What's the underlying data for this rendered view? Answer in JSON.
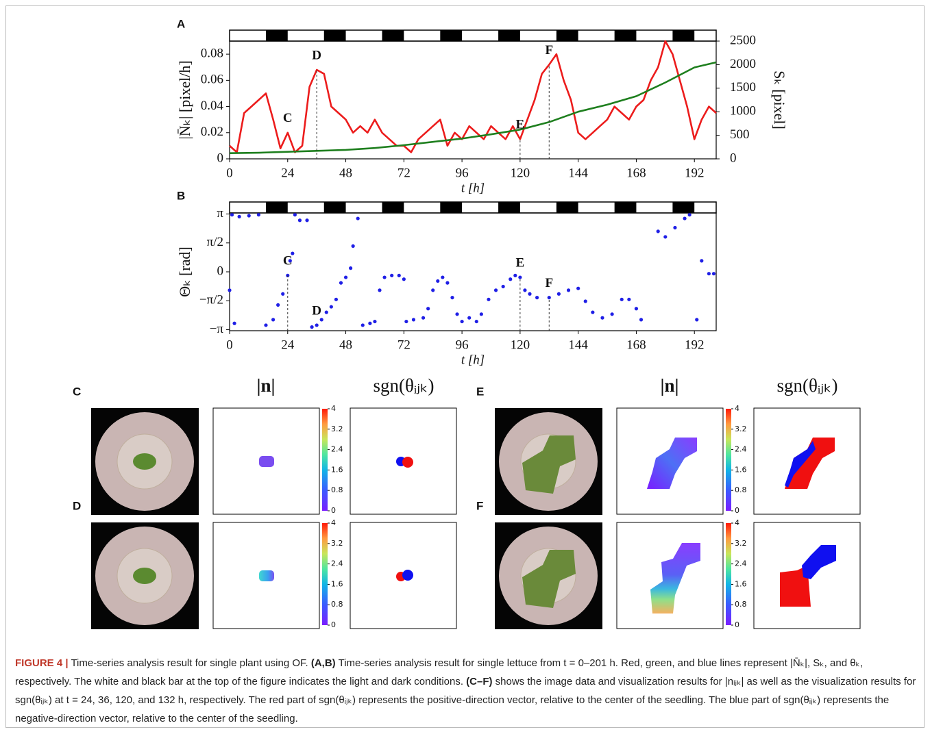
{
  "chart_data": [
    {
      "type": "line",
      "panel_label": "A",
      "xlabel": "t [h]",
      "ylabel": "|N̄ₖ| [pixel/h]",
      "y2label": "Sₖ [pixel]",
      "xlim": [
        0,
        201
      ],
      "xticks": [
        0,
        24,
        48,
        72,
        96,
        120,
        144,
        168,
        192
      ],
      "ylim": [
        0,
        0.09
      ],
      "yticks": [
        0,
        0.02,
        0.04,
        0.06,
        0.08
      ],
      "y2lim": [
        0,
        2500
      ],
      "y2ticks": [
        0,
        500,
        1000,
        1500,
        2000,
        2500
      ],
      "dark_periods": [
        [
          15,
          24
        ],
        [
          39,
          48
        ],
        [
          63,
          72
        ],
        [
          87,
          96
        ],
        [
          111,
          120
        ],
        [
          135,
          144
        ],
        [
          159,
          168
        ],
        [
          183,
          192
        ]
      ],
      "series": [
        {
          "color": "#ec1c1c",
          "x": [
            0,
            3,
            6,
            9,
            12,
            15,
            18,
            21,
            24,
            27,
            30,
            33,
            36,
            39,
            42,
            45,
            48,
            51,
            54,
            57,
            60,
            63,
            66,
            69,
            72,
            75,
            78,
            81,
            84,
            87,
            90,
            93,
            96,
            99,
            102,
            105,
            108,
            111,
            114,
            117,
            120,
            123,
            126,
            129,
            132,
            135,
            138,
            141,
            144,
            147,
            150,
            153,
            156,
            159,
            162,
            165,
            168,
            171,
            174,
            177,
            180,
            183,
            186,
            189,
            192,
            195,
            198,
            201
          ],
          "values": [
            0.01,
            0.005,
            0.035,
            0.04,
            0.045,
            0.05,
            0.03,
            0.008,
            0.02,
            0.005,
            0.01,
            0.055,
            0.068,
            0.065,
            0.04,
            0.035,
            0.03,
            0.02,
            0.025,
            0.02,
            0.03,
            0.02,
            0.015,
            0.01,
            0.01,
            0.005,
            0.015,
            0.02,
            0.025,
            0.03,
            0.01,
            0.02,
            0.015,
            0.025,
            0.02,
            0.015,
            0.025,
            0.02,
            0.015,
            0.025,
            0.015,
            0.03,
            0.045,
            0.065,
            0.072,
            0.08,
            0.06,
            0.045,
            0.02,
            0.015,
            0.02,
            0.025,
            0.03,
            0.04,
            0.035,
            0.03,
            0.04,
            0.045,
            0.06,
            0.07,
            0.09,
            0.08,
            0.06,
            0.04,
            0.015,
            0.03,
            0.04,
            0.035
          ]
        },
        {
          "color": "#1e7f1e",
          "axis": "y2",
          "x": [
            0,
            12,
            24,
            36,
            48,
            60,
            72,
            84,
            96,
            108,
            120,
            132,
            144,
            156,
            168,
            180,
            192,
            201
          ],
          "values": [
            120,
            130,
            150,
            170,
            190,
            230,
            290,
            360,
            430,
            520,
            620,
            780,
            1000,
            1150,
            1330,
            1620,
            1940,
            2050
          ]
        }
      ],
      "markers": [
        {
          "label": "C",
          "x": 24,
          "dashed": false
        },
        {
          "label": "D",
          "x": 36,
          "dashed": true
        },
        {
          "label": "E",
          "x": 120,
          "dashed": true
        },
        {
          "label": "F",
          "x": 132,
          "dashed": true
        }
      ]
    },
    {
      "type": "scatter",
      "panel_label": "B",
      "xlabel": "t [h]",
      "ylabel": "Θₖ [rad]",
      "xlim": [
        0,
        201
      ],
      "xticks": [
        0,
        24,
        48,
        72,
        96,
        120,
        144,
        168,
        192
      ],
      "ylim": [
        -3.2,
        3.2
      ],
      "yticks": [
        {
          "value": 3.1416,
          "label": "π"
        },
        {
          "value": 1.5708,
          "label": "π/2"
        },
        0,
        {
          "value": -1.5708,
          "label": "−π/2"
        },
        {
          "value": -3.1416,
          "label": "−π"
        }
      ],
      "dark_periods": [
        [
          15,
          24
        ],
        [
          39,
          48
        ],
        [
          63,
          72
        ],
        [
          87,
          96
        ],
        [
          111,
          120
        ],
        [
          135,
          144
        ],
        [
          159,
          168
        ],
        [
          183,
          192
        ]
      ],
      "series": [
        {
          "color": "#1f1fe6",
          "x": [
            0,
            1,
            2,
            4,
            8,
            12,
            15,
            18,
            20,
            22,
            24,
            25,
            26,
            27,
            29,
            32,
            34,
            36,
            38,
            40,
            42,
            44,
            46,
            48,
            50,
            51,
            53,
            55,
            58,
            60,
            62,
            64,
            67,
            70,
            72,
            73,
            76,
            80,
            82,
            84,
            86,
            88,
            90,
            92,
            94,
            96,
            99,
            102,
            104,
            107,
            110,
            113,
            116,
            118,
            120,
            122,
            124,
            127,
            132,
            136,
            140,
            144,
            147,
            150,
            154,
            158,
            162,
            165,
            168,
            170,
            177,
            180,
            184,
            188,
            190,
            193,
            195,
            198,
            200
          ],
          "values": [
            -1.0,
            3.1,
            -2.8,
            3.0,
            3.05,
            3.1,
            -2.9,
            -2.6,
            -1.8,
            -1.2,
            -0.2,
            0.6,
            1.0,
            3.1,
            2.8,
            2.8,
            -3.0,
            -2.9,
            -2.6,
            -2.2,
            -1.9,
            -1.5,
            -0.6,
            -0.3,
            0.2,
            1.4,
            2.9,
            -2.9,
            -2.8,
            -2.7,
            -1.0,
            -0.3,
            -0.2,
            -0.2,
            -0.4,
            -2.7,
            -2.6,
            -2.5,
            -2.0,
            -1.0,
            -0.5,
            -0.3,
            -0.6,
            -1.4,
            -2.3,
            -2.7,
            -2.5,
            -2.7,
            -2.3,
            -1.5,
            -1.0,
            -0.8,
            -0.4,
            -0.2,
            -0.3,
            -1.0,
            -1.2,
            -1.4,
            -1.4,
            -1.2,
            -1.0,
            -0.9,
            -1.6,
            -2.2,
            -2.5,
            -2.3,
            -1.5,
            -1.5,
            -2.0,
            -2.6,
            2.2,
            1.9,
            2.4,
            2.9,
            3.1,
            -2.6,
            0.6,
            -0.1,
            -0.1
          ]
        }
      ],
      "markers": [
        {
          "label": "C",
          "x": 24,
          "dashed": true
        },
        {
          "label": "D",
          "x": 36,
          "dashed": false
        },
        {
          "label": "E",
          "x": 120,
          "dashed": true
        },
        {
          "label": "F",
          "x": 132,
          "dashed": true
        }
      ]
    }
  ],
  "panels": {
    "labels": [
      "C",
      "D",
      "E",
      "F"
    ],
    "column_headers": [
      "|n|",
      "sgn(θᵢⱼₖ)"
    ],
    "colorbar_ticks": [
      0,
      0.8,
      1.6,
      2.4,
      3.2,
      4
    ]
  },
  "caption": [
    "FIGURE 4 |",
    " Time-series analysis result for single plant using OF. ",
    "(A,B)",
    " Time-series analysis result for single lettuce from t = 0–201 h. Red, green, and blue lines represent |N̄ₖ|, Sₖ, and θₖ, respectively. The white and black bar at the top of the figure indicates the light and dark conditions. ",
    "(C–F)",
    " shows the image data and visualization results for |nᵢⱼₖ| as well as the visualization results for sgn(θᵢⱼₖ) at t = 24, 36, 120, and 132 h, respectively. The red part of sgn(θᵢⱼₖ) represents the positive-direction vector, relative to the center of the seedling. The blue part of sgn(θᵢⱼₖ) represents the negative-direction vector, relative to the center of the seedling."
  ]
}
